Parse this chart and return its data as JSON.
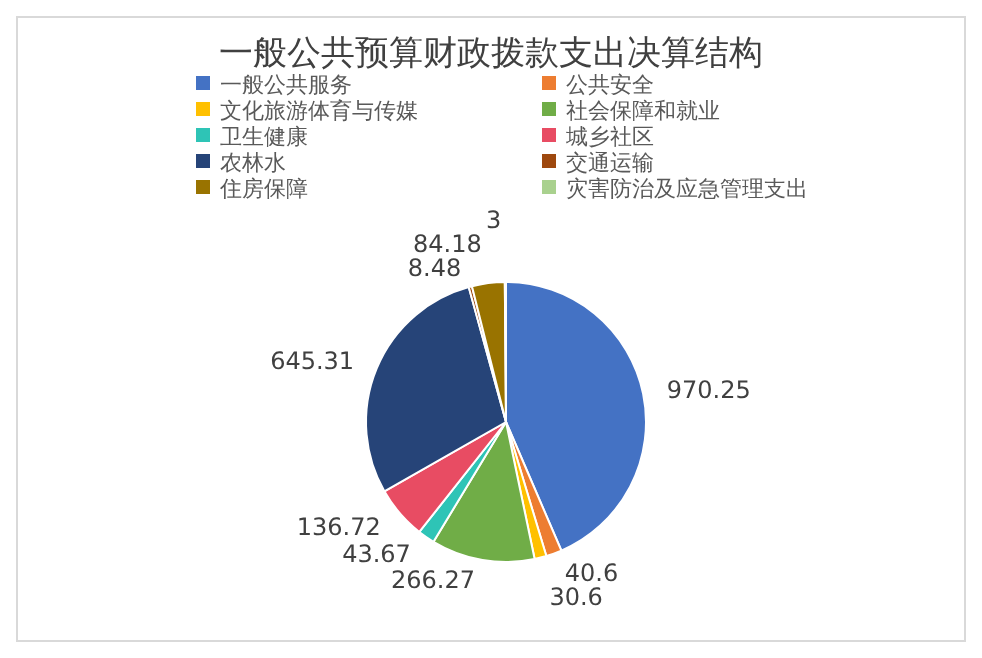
{
  "chart_data": {
    "type": "pie",
    "title": "一般公共预算财政拨款支出决算结构",
    "categories": [
      "一般公共服务",
      "公共安全",
      "文化旅游体育与传媒",
      "社会保障和就业",
      "卫生健康",
      "城乡社区",
      "农林水",
      "交通运输",
      "住房保障",
      "灾害防治及应急管理支出"
    ],
    "values": [
      970.25,
      40.6,
      30.6,
      266.27,
      43.67,
      136.72,
      645.31,
      8.48,
      84.18,
      3
    ],
    "colors": [
      "#4472c4",
      "#ed7d31",
      "#ffc000",
      "#70ad47",
      "#2ec4b6",
      "#e84c63",
      "#264478",
      "#9e480e",
      "#997300",
      "#a9d18e"
    ],
    "data_labels": true,
    "legend": "top"
  }
}
